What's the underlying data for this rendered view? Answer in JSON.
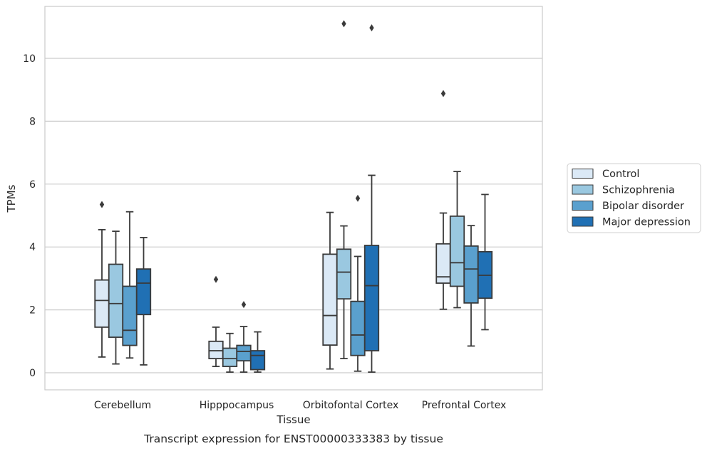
{
  "chart_data": {
    "type": "boxplot",
    "title": "",
    "caption": "Transcript expression for ENST00000333383 by tissue",
    "xlabel": "Tissue",
    "ylabel": "TPMs",
    "ylim": [
      -0.5,
      11.65
    ],
    "yticks": [
      0,
      2,
      4,
      6,
      8,
      10
    ],
    "grid": true,
    "legend_position": "right",
    "categories": [
      "Cerebellum",
      "Hipppocampus",
      "Orbitofontal Cortex",
      "Prefrontal Cortex"
    ],
    "series": [
      {
        "name": "Control",
        "color": "#dbe9f6",
        "boxes": [
          {
            "whislo": 0.5,
            "q1": 1.45,
            "med": 2.3,
            "q3": 2.95,
            "whishi": 4.55,
            "fliers": [
              5.35
            ]
          },
          {
            "whislo": 0.2,
            "q1": 0.45,
            "med": 0.7,
            "q3": 1.0,
            "whishi": 1.45,
            "fliers": [
              2.97
            ]
          },
          {
            "whislo": 0.12,
            "q1": 0.88,
            "med": 1.82,
            "q3": 3.77,
            "whishi": 5.1,
            "fliers": []
          },
          {
            "whislo": 2.02,
            "q1": 2.85,
            "med": 3.05,
            "q3": 4.1,
            "whishi": 5.08,
            "fliers": [
              8.88
            ]
          }
        ]
      },
      {
        "name": "Schizophrenia",
        "color": "#9ac8e0",
        "boxes": [
          {
            "whislo": 0.28,
            "q1": 1.13,
            "med": 2.2,
            "q3": 3.45,
            "whishi": 4.5,
            "fliers": []
          },
          {
            "whislo": 0.02,
            "q1": 0.2,
            "med": 0.45,
            "q3": 0.78,
            "whishi": 1.25,
            "fliers": []
          },
          {
            "whislo": 0.45,
            "q1": 2.35,
            "med": 3.2,
            "q3": 3.93,
            "whishi": 4.67,
            "fliers": [
              11.1
            ]
          },
          {
            "whislo": 2.07,
            "q1": 2.75,
            "med": 3.5,
            "q3": 4.98,
            "whishi": 6.4,
            "fliers": []
          }
        ]
      },
      {
        "name": "Bipolar disorder",
        "color": "#5aa0ce",
        "boxes": [
          {
            "whislo": 0.47,
            "q1": 0.87,
            "med": 1.35,
            "q3": 2.75,
            "whishi": 5.12,
            "fliers": []
          },
          {
            "whislo": 0.02,
            "q1": 0.38,
            "med": 0.68,
            "q3": 0.87,
            "whishi": 1.47,
            "fliers": [
              2.17
            ]
          },
          {
            "whislo": 0.05,
            "q1": 0.55,
            "med": 1.2,
            "q3": 2.27,
            "whishi": 3.7,
            "fliers": [
              5.55
            ]
          },
          {
            "whislo": 0.85,
            "q1": 2.22,
            "med": 3.3,
            "q3": 4.03,
            "whishi": 4.68,
            "fliers": []
          }
        ]
      },
      {
        "name": "Major depression",
        "color": "#2070b4",
        "boxes": [
          {
            "whislo": 0.25,
            "q1": 1.85,
            "med": 2.85,
            "q3": 3.3,
            "whishi": 4.3,
            "fliers": []
          },
          {
            "whislo": 0.02,
            "q1": 0.1,
            "med": 0.55,
            "q3": 0.7,
            "whishi": 1.3,
            "fliers": []
          },
          {
            "whislo": 0.02,
            "q1": 0.7,
            "med": 2.77,
            "q3": 4.05,
            "whishi": 6.28,
            "fliers": [
              10.97
            ]
          },
          {
            "whislo": 1.37,
            "q1": 2.37,
            "med": 3.1,
            "q3": 3.85,
            "whishi": 5.67,
            "fliers": []
          }
        ]
      }
    ]
  }
}
